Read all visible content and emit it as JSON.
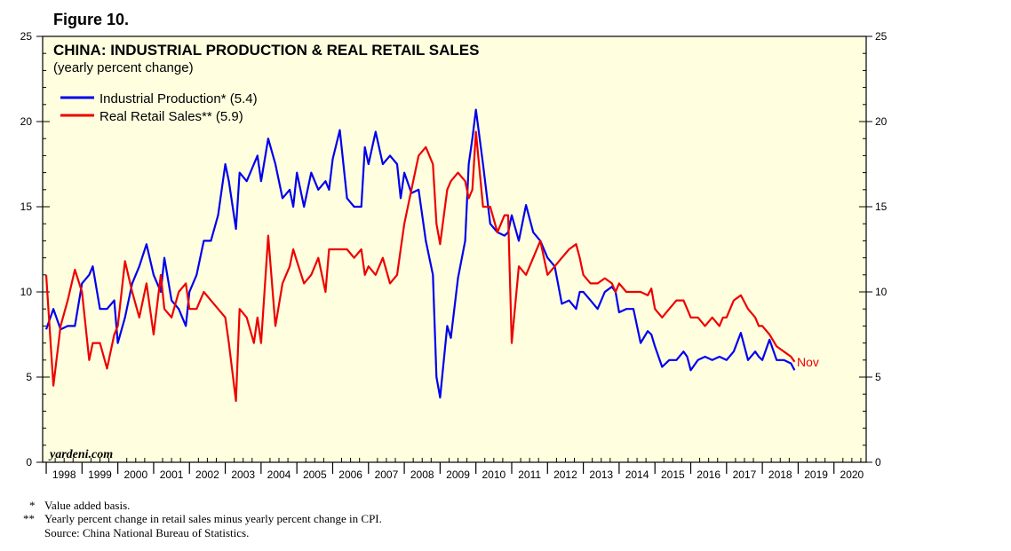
{
  "figure_label": "Figure 10.",
  "footnotes": [
    {
      "mark": "*",
      "text": "Value added basis."
    },
    {
      "mark": "**",
      "text": "Yearly percent change in retail sales minus yearly percent change in CPI."
    },
    {
      "mark": "",
      "text": "Source: China National Bureau of Statistics."
    }
  ],
  "chart_data": {
    "type": "line",
    "title": "CHINA: INDUSTRIAL PRODUCTION & REAL RETAIL SALES",
    "subtitle": "(yearly percent change)",
    "watermark": "yardeni.com",
    "annotation": "Nov",
    "background": "#ffffe0",
    "xlim": [
      1997.9,
      2020.9
    ],
    "ylim": [
      0,
      25
    ],
    "yticks": [
      0,
      5,
      10,
      15,
      20,
      25
    ],
    "x_labels": [
      "1998",
      "1999",
      "2000",
      "2001",
      "2002",
      "2003",
      "2004",
      "2005",
      "2006",
      "2007",
      "2008",
      "2009",
      "2010",
      "2011",
      "2012",
      "2013",
      "2014",
      "2015",
      "2016",
      "2017",
      "2018",
      "2019",
      "2020"
    ],
    "series": [
      {
        "name": "Industrial Production*",
        "legend": "Industrial Production* (5.4)",
        "color": "#0000ee",
        "points": [
          [
            1998.0,
            7.8
          ],
          [
            1998.2,
            9.0
          ],
          [
            1998.4,
            7.8
          ],
          [
            1998.6,
            8.0
          ],
          [
            1998.8,
            8.0
          ],
          [
            1999.0,
            10.5
          ],
          [
            1999.2,
            11.0
          ],
          [
            1999.3,
            11.5
          ],
          [
            1999.5,
            9.0
          ],
          [
            1999.7,
            9.0
          ],
          [
            1999.9,
            9.5
          ],
          [
            2000.0,
            7.0
          ],
          [
            2000.2,
            8.5
          ],
          [
            2000.4,
            10.5
          ],
          [
            2000.6,
            11.5
          ],
          [
            2000.8,
            12.8
          ],
          [
            2001.0,
            11.0
          ],
          [
            2001.2,
            10.0
          ],
          [
            2001.3,
            12.0
          ],
          [
            2001.5,
            9.5
          ],
          [
            2001.7,
            9.0
          ],
          [
            2001.9,
            8.0
          ],
          [
            2002.0,
            10.0
          ],
          [
            2002.2,
            11.0
          ],
          [
            2002.4,
            13.0
          ],
          [
            2002.6,
            13.0
          ],
          [
            2002.8,
            14.5
          ],
          [
            2003.0,
            17.5
          ],
          [
            2003.1,
            16.5
          ],
          [
            2003.3,
            13.7
          ],
          [
            2003.4,
            17.0
          ],
          [
            2003.6,
            16.5
          ],
          [
            2003.8,
            17.5
          ],
          [
            2003.9,
            18.0
          ],
          [
            2004.0,
            16.5
          ],
          [
            2004.2,
            19.0
          ],
          [
            2004.4,
            17.5
          ],
          [
            2004.6,
            15.5
          ],
          [
            2004.8,
            16.0
          ],
          [
            2004.9,
            15.0
          ],
          [
            2005.0,
            17.0
          ],
          [
            2005.2,
            15.0
          ],
          [
            2005.4,
            17.0
          ],
          [
            2005.6,
            16.0
          ],
          [
            2005.8,
            16.5
          ],
          [
            2005.9,
            16.0
          ],
          [
            2006.0,
            17.8
          ],
          [
            2006.2,
            19.5
          ],
          [
            2006.4,
            15.5
          ],
          [
            2006.6,
            15.0
          ],
          [
            2006.8,
            15.0
          ],
          [
            2006.9,
            18.5
          ],
          [
            2007.0,
            17.5
          ],
          [
            2007.2,
            19.4
          ],
          [
            2007.4,
            17.5
          ],
          [
            2007.6,
            18.0
          ],
          [
            2007.8,
            17.5
          ],
          [
            2007.9,
            15.5
          ],
          [
            2008.0,
            17.0
          ],
          [
            2008.2,
            15.8
          ],
          [
            2008.4,
            16.0
          ],
          [
            2008.6,
            13.0
          ],
          [
            2008.8,
            11.0
          ],
          [
            2008.9,
            5.0
          ],
          [
            2009.0,
            3.8
          ],
          [
            2009.2,
            8.0
          ],
          [
            2009.3,
            7.3
          ],
          [
            2009.5,
            10.8
          ],
          [
            2009.7,
            13.0
          ],
          [
            2009.8,
            17.5
          ],
          [
            2009.9,
            19.0
          ],
          [
            2010.0,
            20.7
          ],
          [
            2010.2,
            17.5
          ],
          [
            2010.4,
            14.0
          ],
          [
            2010.6,
            13.5
          ],
          [
            2010.8,
            13.3
          ],
          [
            2010.9,
            13.5
          ],
          [
            2011.0,
            14.5
          ],
          [
            2011.2,
            13.0
          ],
          [
            2011.4,
            15.1
          ],
          [
            2011.6,
            13.5
          ],
          [
            2011.8,
            13.0
          ],
          [
            2012.0,
            12.0
          ],
          [
            2012.2,
            11.5
          ],
          [
            2012.4,
            9.3
          ],
          [
            2012.6,
            9.5
          ],
          [
            2012.8,
            9.0
          ],
          [
            2012.9,
            10.0
          ],
          [
            2013.0,
            10.0
          ],
          [
            2013.2,
            9.5
          ],
          [
            2013.4,
            9.0
          ],
          [
            2013.6,
            10.0
          ],
          [
            2013.8,
            10.3
          ],
          [
            2013.9,
            10.0
          ],
          [
            2014.0,
            8.8
          ],
          [
            2014.2,
            9.0
          ],
          [
            2014.4,
            9.0
          ],
          [
            2014.6,
            7.0
          ],
          [
            2014.8,
            7.7
          ],
          [
            2014.9,
            7.5
          ],
          [
            2015.0,
            6.8
          ],
          [
            2015.2,
            5.6
          ],
          [
            2015.4,
            6.0
          ],
          [
            2015.6,
            6.0
          ],
          [
            2015.8,
            6.5
          ],
          [
            2015.9,
            6.2
          ],
          [
            2016.0,
            5.4
          ],
          [
            2016.2,
            6.0
          ],
          [
            2016.4,
            6.2
          ],
          [
            2016.6,
            6.0
          ],
          [
            2016.8,
            6.2
          ],
          [
            2016.9,
            6.1
          ],
          [
            2017.0,
            6.0
          ],
          [
            2017.2,
            6.5
          ],
          [
            2017.4,
            7.6
          ],
          [
            2017.6,
            6.0
          ],
          [
            2017.8,
            6.5
          ],
          [
            2017.9,
            6.2
          ],
          [
            2018.0,
            6.0
          ],
          [
            2018.2,
            7.2
          ],
          [
            2018.4,
            6.0
          ],
          [
            2018.6,
            6.0
          ],
          [
            2018.8,
            5.8
          ],
          [
            2018.9,
            5.4
          ]
        ]
      },
      {
        "name": "Real Retail Sales**",
        "legend": "Real Retail Sales** (5.9)",
        "color": "#ee0000",
        "points": [
          [
            1998.0,
            11.0
          ],
          [
            1998.2,
            4.5
          ],
          [
            1998.4,
            8.0
          ],
          [
            1998.6,
            9.5
          ],
          [
            1998.8,
            11.3
          ],
          [
            1999.0,
            10.0
          ],
          [
            1999.2,
            6.0
          ],
          [
            1999.3,
            7.0
          ],
          [
            1999.5,
            7.0
          ],
          [
            1999.7,
            5.5
          ],
          [
            1999.9,
            7.5
          ],
          [
            2000.0,
            8.0
          ],
          [
            2000.2,
            11.8
          ],
          [
            2000.4,
            10.0
          ],
          [
            2000.6,
            8.5
          ],
          [
            2000.8,
            10.5
          ],
          [
            2001.0,
            7.5
          ],
          [
            2001.2,
            11.0
          ],
          [
            2001.3,
            9.0
          ],
          [
            2001.5,
            8.5
          ],
          [
            2001.7,
            10.0
          ],
          [
            2001.9,
            10.5
          ],
          [
            2002.0,
            9.0
          ],
          [
            2002.2,
            9.0
          ],
          [
            2002.4,
            10.0
          ],
          [
            2002.6,
            9.5
          ],
          [
            2002.8,
            9.0
          ],
          [
            2003.0,
            8.5
          ],
          [
            2003.1,
            7.0
          ],
          [
            2003.3,
            3.6
          ],
          [
            2003.4,
            9.0
          ],
          [
            2003.6,
            8.5
          ],
          [
            2003.8,
            7.0
          ],
          [
            2003.9,
            8.5
          ],
          [
            2004.0,
            7.0
          ],
          [
            2004.2,
            13.3
          ],
          [
            2004.4,
            8.0
          ],
          [
            2004.6,
            10.5
          ],
          [
            2004.8,
            11.5
          ],
          [
            2004.9,
            12.5
          ],
          [
            2005.0,
            11.8
          ],
          [
            2005.2,
            10.5
          ],
          [
            2005.4,
            11.0
          ],
          [
            2005.6,
            12.0
          ],
          [
            2005.8,
            10.0
          ],
          [
            2005.9,
            12.5
          ],
          [
            2006.0,
            12.5
          ],
          [
            2006.2,
            12.5
          ],
          [
            2006.4,
            12.5
          ],
          [
            2006.6,
            12.0
          ],
          [
            2006.8,
            12.5
          ],
          [
            2006.9,
            11.0
          ],
          [
            2007.0,
            11.5
          ],
          [
            2007.2,
            11.0
          ],
          [
            2007.4,
            12.0
          ],
          [
            2007.6,
            10.5
          ],
          [
            2007.8,
            11.0
          ],
          [
            2007.9,
            12.5
          ],
          [
            2008.0,
            14.0
          ],
          [
            2008.2,
            16.0
          ],
          [
            2008.4,
            18.0
          ],
          [
            2008.6,
            18.5
          ],
          [
            2008.8,
            17.5
          ],
          [
            2008.9,
            14.0
          ],
          [
            2009.0,
            12.8
          ],
          [
            2009.2,
            16.0
          ],
          [
            2009.3,
            16.5
          ],
          [
            2009.5,
            17.0
          ],
          [
            2009.7,
            16.5
          ],
          [
            2009.8,
            15.5
          ],
          [
            2009.9,
            16.0
          ],
          [
            2010.0,
            19.4
          ],
          [
            2010.2,
            15.0
          ],
          [
            2010.4,
            15.0
          ],
          [
            2010.6,
            13.5
          ],
          [
            2010.8,
            14.5
          ],
          [
            2010.9,
            14.5
          ],
          [
            2011.0,
            7.0
          ],
          [
            2011.2,
            11.5
          ],
          [
            2011.4,
            11.0
          ],
          [
            2011.6,
            12.0
          ],
          [
            2011.8,
            13.0
          ],
          [
            2011.9,
            12.0
          ],
          [
            2012.0,
            11.0
          ],
          [
            2012.2,
            11.5
          ],
          [
            2012.4,
            12.0
          ],
          [
            2012.6,
            12.5
          ],
          [
            2012.8,
            12.8
          ],
          [
            2012.9,
            12.0
          ],
          [
            2013.0,
            11.0
          ],
          [
            2013.2,
            10.5
          ],
          [
            2013.4,
            10.5
          ],
          [
            2013.6,
            10.8
          ],
          [
            2013.8,
            10.5
          ],
          [
            2013.9,
            10.0
          ],
          [
            2014.0,
            10.5
          ],
          [
            2014.2,
            10.0
          ],
          [
            2014.4,
            10.0
          ],
          [
            2014.6,
            10.0
          ],
          [
            2014.8,
            9.8
          ],
          [
            2014.9,
            10.2
          ],
          [
            2015.0,
            9.0
          ],
          [
            2015.2,
            8.5
          ],
          [
            2015.4,
            9.0
          ],
          [
            2015.6,
            9.5
          ],
          [
            2015.8,
            9.5
          ],
          [
            2015.9,
            9.0
          ],
          [
            2016.0,
            8.5
          ],
          [
            2016.2,
            8.5
          ],
          [
            2016.4,
            8.0
          ],
          [
            2016.6,
            8.5
          ],
          [
            2016.8,
            8.0
          ],
          [
            2016.9,
            8.5
          ],
          [
            2017.0,
            8.5
          ],
          [
            2017.2,
            9.5
          ],
          [
            2017.4,
            9.8
          ],
          [
            2017.6,
            9.0
          ],
          [
            2017.8,
            8.5
          ],
          [
            2017.9,
            8.0
          ],
          [
            2018.0,
            8.0
          ],
          [
            2018.2,
            7.5
          ],
          [
            2018.4,
            6.8
          ],
          [
            2018.6,
            6.5
          ],
          [
            2018.8,
            6.2
          ],
          [
            2018.9,
            5.9
          ]
        ]
      }
    ]
  }
}
